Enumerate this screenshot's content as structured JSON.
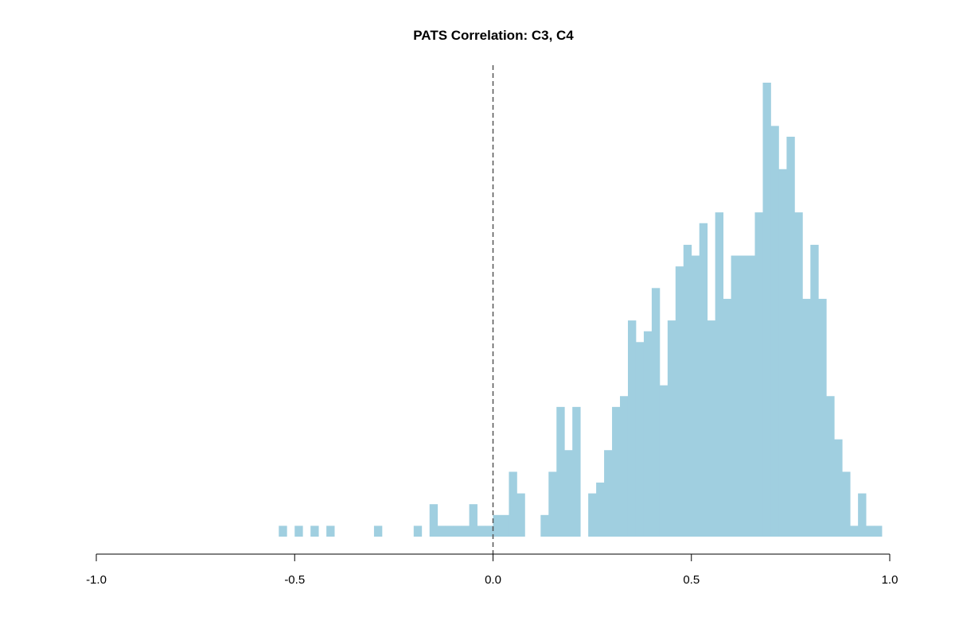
{
  "chart_data": {
    "type": "bar",
    "title": "PATS Correlation: C3, C4",
    "xlabel": "",
    "ylabel": "",
    "xlim": [
      -1.0,
      1.0
    ],
    "x_ticks": [
      -1.0,
      -0.5,
      0.0,
      0.5,
      1.0
    ],
    "x_tick_labels": [
      "-1.0",
      "-0.5",
      "0.0",
      "0.5",
      "1.0"
    ],
    "y_axis_shown": false,
    "grid": false,
    "reference_line": {
      "x": 0.0,
      "style": "dashed",
      "color": "#555555"
    },
    "bar_color": "#a0cfe0",
    "bin_width": 0.02,
    "bin_starts": [
      -0.54,
      -0.52,
      -0.5,
      -0.48,
      -0.46,
      -0.44,
      -0.42,
      -0.4,
      -0.38,
      -0.36,
      -0.34,
      -0.32,
      -0.3,
      -0.28,
      -0.26,
      -0.24,
      -0.22,
      -0.2,
      -0.18,
      -0.16,
      -0.14,
      -0.12,
      -0.1,
      -0.08,
      -0.06,
      -0.04,
      -0.02,
      0.0,
      0.02,
      0.04,
      0.06,
      0.08,
      0.1,
      0.12,
      0.14,
      0.16,
      0.18,
      0.2,
      0.22,
      0.24,
      0.26,
      0.28,
      0.3,
      0.32,
      0.34,
      0.36,
      0.38,
      0.4,
      0.42,
      0.44,
      0.46,
      0.48,
      0.5,
      0.52,
      0.54,
      0.56,
      0.58,
      0.6,
      0.62,
      0.64,
      0.66,
      0.68,
      0.7,
      0.72,
      0.74,
      0.76,
      0.78,
      0.8,
      0.82,
      0.84,
      0.86,
      0.88,
      0.9,
      0.92,
      0.94,
      0.96
    ],
    "counts": [
      1,
      0,
      1,
      0,
      1,
      0,
      1,
      0,
      0,
      0,
      0,
      0,
      1,
      0,
      0,
      0,
      0,
      1,
      0,
      3,
      1,
      1,
      1,
      1,
      3,
      1,
      1,
      2,
      2,
      6,
      4,
      0,
      0,
      2,
      6,
      12,
      8,
      12,
      0,
      4,
      5,
      8,
      12,
      13,
      20,
      18,
      19,
      23,
      14,
      20,
      25,
      27,
      26,
      29,
      20,
      30,
      22,
      26,
      26,
      26,
      30,
      42,
      38,
      34,
      37,
      30,
      22,
      27,
      22,
      13,
      9,
      6,
      1,
      4,
      1,
      1
    ]
  }
}
